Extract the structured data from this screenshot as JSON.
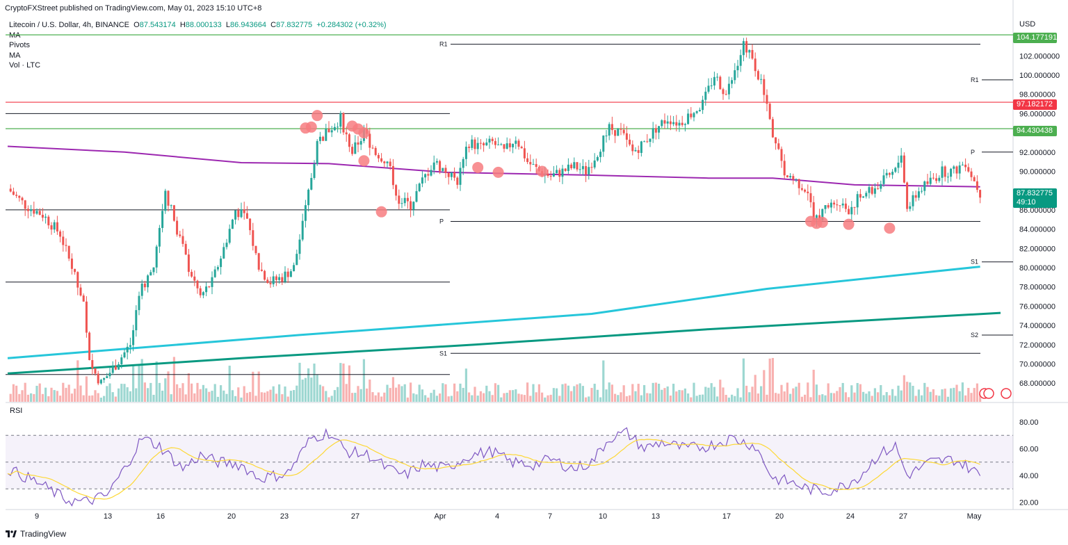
{
  "header": {
    "published": "CryptoFXStreet published on TradingView.com, May 01, 2023 15:10 UTC+8"
  },
  "legend": {
    "symbol": "Litecoin / U.S. Dollar, 4h, BINANCE",
    "open_label": "O",
    "open": "87.543174",
    "high_label": "H",
    "high": "88.000133",
    "low_label": "L",
    "low": "86.943664",
    "close_label": "C",
    "close": "87.832775",
    "change": "+0.284302 (+0.32%)",
    "indicators": [
      "MA",
      "Pivots",
      "MA",
      "Vol · LTC"
    ]
  },
  "price_axis": {
    "currency": "USD",
    "ticks": [
      "102.000000",
      "100.000000",
      "98.000000",
      "96.000000",
      "92.000000",
      "90.000000",
      "86.000000",
      "84.000000",
      "82.000000",
      "80.000000",
      "78.000000",
      "76.000000",
      "74.000000",
      "72.000000",
      "70.000000",
      "68.000000"
    ],
    "tags": {
      "resistance_top": "104.177191",
      "red_line": "97.182172",
      "green_line": "94.430438",
      "last_price": "87.832775",
      "countdown": "49:10"
    }
  },
  "rsi": {
    "label": "RSI",
    "ticks": [
      "80.00",
      "60.00",
      "40.00",
      "20.00"
    ]
  },
  "time_axis": [
    "9",
    "13",
    "16",
    "20",
    "23",
    "27",
    "Apr",
    "4",
    "7",
    "10",
    "13",
    "17",
    "20",
    "24",
    "27",
    "May"
  ],
  "pivot_labels": {
    "r1": "R1",
    "p": "P",
    "s1": "S1",
    "s2": "S2"
  },
  "footer": {
    "brand": "TradingView"
  },
  "colors": {
    "up": "#26a69a",
    "down": "#ef5350",
    "ma_purple": "#9c27b0",
    "ma_cyan": "#26c6da",
    "ma_green": "#089981",
    "hline_green": "#4caf50",
    "hline_red": "#f23645",
    "rsi_line": "#7e57c2",
    "rsi_ma": "#fdd835",
    "circle": "#f77c80"
  },
  "chart_data": {
    "type": "candlestick",
    "symbol": "Litecoin / U.S. Dollar",
    "interval": "4h",
    "x_range": [
      "2023-03-08",
      "2023-05-02"
    ],
    "ylim": [
      66,
      105
    ],
    "rsi_ylim": [
      10,
      85
    ],
    "price_path": [
      [
        0,
        88.2
      ],
      [
        6,
        86.5
      ],
      [
        12,
        85.5
      ],
      [
        18,
        83.5
      ],
      [
        22,
        80
      ],
      [
        26,
        76
      ],
      [
        28,
        70
      ],
      [
        32,
        68
      ],
      [
        36,
        69.5
      ],
      [
        42,
        72
      ],
      [
        46,
        78
      ],
      [
        50,
        80
      ],
      [
        54,
        88
      ],
      [
        58,
        84
      ],
      [
        62,
        80
      ],
      [
        66,
        77
      ],
      [
        70,
        78.5
      ],
      [
        74,
        82
      ],
      [
        78,
        86
      ],
      [
        82,
        85
      ],
      [
        86,
        80
      ],
      [
        90,
        78.5
      ],
      [
        94,
        79
      ],
      [
        98,
        80
      ],
      [
        102,
        86
      ],
      [
        106,
        93
      ],
      [
        110,
        94.3
      ],
      [
        114,
        95.5
      ],
      [
        118,
        92
      ],
      [
        122,
        94
      ],
      [
        126,
        92
      ],
      [
        130,
        91
      ],
      [
        134,
        87
      ],
      [
        138,
        86.5
      ],
      [
        142,
        89
      ],
      [
        146,
        91
      ],
      [
        150,
        90
      ],
      [
        154,
        89
      ],
      [
        158,
        93
      ],
      [
        162,
        92.5
      ],
      [
        166,
        93
      ],
      [
        170,
        92
      ],
      [
        174,
        93.5
      ],
      [
        178,
        91
      ],
      [
        182,
        90
      ],
      [
        186,
        89.5
      ],
      [
        190,
        90
      ],
      [
        194,
        90.5
      ],
      [
        198,
        90
      ],
      [
        202,
        92
      ],
      [
        206,
        94.5
      ],
      [
        210,
        94
      ],
      [
        214,
        92
      ],
      [
        218,
        93
      ],
      [
        222,
        94.5
      ],
      [
        226,
        95.5
      ],
      [
        230,
        95
      ],
      [
        234,
        96
      ],
      [
        238,
        97
      ],
      [
        242,
        100
      ],
      [
        246,
        98
      ],
      [
        250,
        101
      ],
      [
        252,
        103.2
      ],
      [
        256,
        101
      ],
      [
        258,
        99
      ],
      [
        262,
        94
      ],
      [
        266,
        90
      ],
      [
        270,
        89
      ],
      [
        274,
        88
      ],
      [
        276,
        85
      ],
      [
        280,
        86
      ],
      [
        284,
        87
      ],
      [
        288,
        86
      ],
      [
        292,
        87.5
      ],
      [
        296,
        88
      ],
      [
        300,
        89
      ],
      [
        304,
        90
      ],
      [
        306,
        92
      ],
      [
        308,
        86
      ],
      [
        312,
        88
      ],
      [
        316,
        89
      ],
      [
        320,
        90
      ],
      [
        324,
        90
      ],
      [
        328,
        91
      ],
      [
        331,
        89
      ],
      [
        333,
        87.8
      ]
    ],
    "rsi_path": [
      [
        0,
        45
      ],
      [
        10,
        35
      ],
      [
        20,
        22
      ],
      [
        26,
        20
      ],
      [
        34,
        25
      ],
      [
        40,
        45
      ],
      [
        46,
        68
      ],
      [
        52,
        62
      ],
      [
        60,
        45
      ],
      [
        66,
        55
      ],
      [
        72,
        50
      ],
      [
        80,
        48
      ],
      [
        86,
        38
      ],
      [
        92,
        40
      ],
      [
        96,
        42
      ],
      [
        104,
        68
      ],
      [
        110,
        72
      ],
      [
        116,
        58
      ],
      [
        124,
        55
      ],
      [
        130,
        45
      ],
      [
        136,
        40
      ],
      [
        142,
        48
      ],
      [
        150,
        45
      ],
      [
        158,
        55
      ],
      [
        166,
        58
      ],
      [
        172,
        50
      ],
      [
        180,
        48
      ],
      [
        186,
        52
      ],
      [
        194,
        45
      ],
      [
        200,
        50
      ],
      [
        206,
        68
      ],
      [
        212,
        72
      ],
      [
        218,
        60
      ],
      [
        224,
        65
      ],
      [
        232,
        60
      ],
      [
        240,
        62
      ],
      [
        248,
        68
      ],
      [
        256,
        62
      ],
      [
        262,
        38
      ],
      [
        268,
        35
      ],
      [
        274,
        30
      ],
      [
        280,
        28
      ],
      [
        286,
        32
      ],
      [
        292,
        40
      ],
      [
        298,
        55
      ],
      [
        304,
        62
      ],
      [
        308,
        40
      ],
      [
        316,
        50
      ],
      [
        324,
        52
      ],
      [
        330,
        45
      ],
      [
        333,
        40
      ]
    ],
    "ma_purple": [
      [
        0,
        92.6
      ],
      [
        40,
        92.0
      ],
      [
        80,
        90.9
      ],
      [
        110,
        90.8
      ],
      [
        150,
        89.9
      ],
      [
        200,
        89.6
      ],
      [
        240,
        89.3
      ],
      [
        262,
        89.3
      ],
      [
        290,
        88.6
      ],
      [
        333,
        88.4
      ]
    ],
    "pivot_levels": {
      "R1": 103.2,
      "P": 84.8,
      "S1": 71.1,
      "S1_new": 80.6,
      "S2": 73.0,
      "R1_new": 99.5,
      "P_new": 92.0
    },
    "key_levels": {
      "resistance_top": 104.18,
      "red_line": 97.18,
      "green_line": 94.43
    },
    "annotations": [
      "red circles mark rejection / support touches"
    ]
  }
}
